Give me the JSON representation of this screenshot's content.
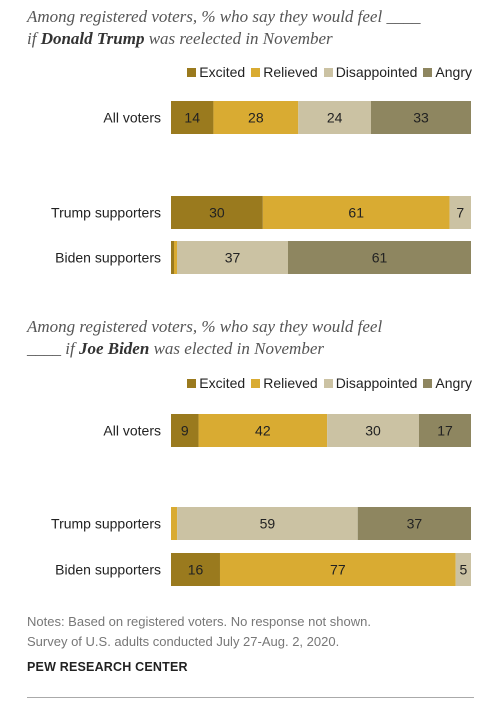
{
  "colors": {
    "Excited": "#9a7a1e",
    "Relieved": "#d9ab32",
    "Disappointed": "#cbc2a3",
    "Angry": "#8e8660"
  },
  "legend_items": [
    "Excited",
    "Relieved",
    "Disappointed",
    "Angry"
  ],
  "chart_data": [
    {
      "type": "bar",
      "orientation": "horizontal-stacked",
      "title_parts": [
        "Among registered voters, % who say they would feel ____",
        "if ",
        "Donald Trump",
        " was reelected in November"
      ],
      "legend_placement": "top-right",
      "categories": [
        "All voters",
        "Trump supporters",
        "Biden supporters"
      ],
      "series": [
        {
          "name": "Excited",
          "values": [
            14,
            30,
            1
          ]
        },
        {
          "name": "Relieved",
          "values": [
            28,
            61,
            1
          ]
        },
        {
          "name": "Disappointed",
          "values": [
            24,
            7,
            37
          ]
        },
        {
          "name": "Angry",
          "values": [
            33,
            0,
            61
          ]
        }
      ]
    },
    {
      "type": "bar",
      "orientation": "horizontal-stacked",
      "title_parts": [
        "Among registered voters, % who say they would feel",
        "____ if ",
        "Joe Biden",
        " was elected in November"
      ],
      "legend_placement": "top-right",
      "categories": [
        "All voters",
        "Trump supporters",
        "Biden supporters"
      ],
      "series": [
        {
          "name": "Excited",
          "values": [
            9,
            0,
            16
          ]
        },
        {
          "name": "Relieved",
          "values": [
            42,
            2,
            77
          ]
        },
        {
          "name": "Disappointed",
          "values": [
            30,
            59,
            5
          ]
        },
        {
          "name": "Angry",
          "values": [
            17,
            37,
            0
          ]
        }
      ]
    }
  ],
  "notes": {
    "line1": "Notes: Based on registered voters. No response not shown.",
    "line2": "Survey of U.S. adults conducted July 27-Aug. 2, 2020."
  },
  "brand": "PEW RESEARCH CENTER"
}
